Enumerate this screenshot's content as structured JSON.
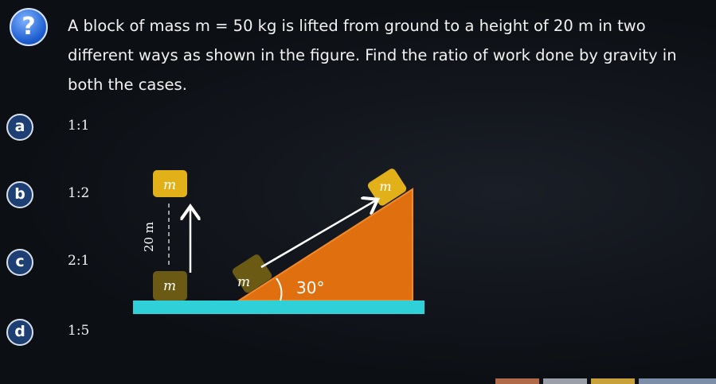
{
  "question": {
    "icon": "question-mark-icon",
    "glyph": "?",
    "text": "A block of mass m = 50 kg is lifted from ground to a height of 20 m in two different ways as shown in the figure. Find the ratio of work done by gravity in both the cases."
  },
  "options": [
    {
      "letter": "a",
      "text": "1:1"
    },
    {
      "letter": "b",
      "text": "1:2"
    },
    {
      "letter": "c",
      "text": "2:1"
    },
    {
      "letter": "d",
      "text": "1:5"
    }
  ],
  "figure": {
    "block_label": "m",
    "height_label": "20 m",
    "angle_label": "30°",
    "colors": {
      "incline": "#e0700f",
      "ground": "#2fd0d8",
      "block_top": "#e2b11a",
      "block_bottom": "#6b5a14"
    }
  }
}
